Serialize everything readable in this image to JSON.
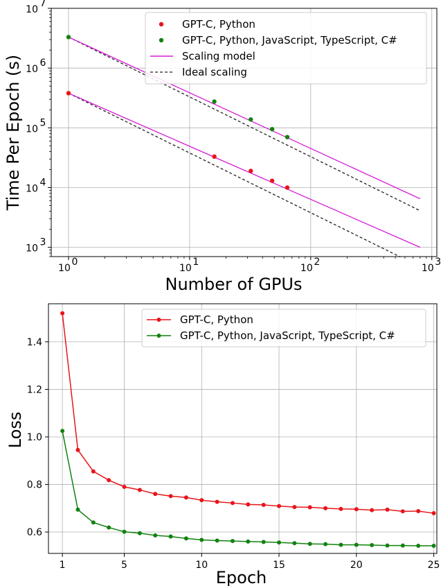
{
  "chart_data": [
    {
      "type": "scatter",
      "scale": "log-log",
      "xlabel": "Number of GPUs",
      "ylabel": "Time Per Epoch (s)",
      "xlim": [
        0.72,
        1100
      ],
      "ylim": [
        700,
        10000000
      ],
      "xticks": [
        1,
        10,
        100,
        1000
      ],
      "xtick_labels": [
        "10",
        "10",
        "10",
        "10"
      ],
      "xtick_exps": [
        "0",
        "1",
        "2",
        "3"
      ],
      "yticks": [
        1000,
        10000,
        100000,
        1000000,
        10000000
      ],
      "ytick_labels": [
        "10",
        "10",
        "10",
        "10",
        "10"
      ],
      "ytick_exps": [
        "3",
        "4",
        "5",
        "6",
        "7"
      ],
      "grid": true,
      "legend_position": "top-right",
      "legend": [
        {
          "label": "GPT-C, Python",
          "kind": "marker",
          "color": "#e8141a"
        },
        {
          "label": "GPT-C, Python, JavaScript, TypeScript, C#",
          "kind": "marker",
          "color": "#12820f"
        },
        {
          "label": "Scaling model",
          "kind": "line",
          "color": "#d61bd6"
        },
        {
          "label": "Ideal scaling",
          "kind": "dashed",
          "color": "#222222"
        }
      ],
      "series": [
        {
          "name": "GPT-C, Python",
          "color": "#e8141a",
          "points": [
            [
              1,
              380000
            ],
            [
              16,
              33000
            ],
            [
              32,
              19000
            ],
            [
              48,
              13000
            ],
            [
              64,
              10000
            ]
          ]
        },
        {
          "name": "GPT-C, Python, JavaScript, TypeScript, C#",
          "color": "#12820f",
          "points": [
            [
              1,
              3300000
            ],
            [
              16,
              275000
            ],
            [
              32,
              138000
            ],
            [
              48,
              95000
            ],
            [
              64,
              70000
            ]
          ]
        }
      ],
      "scaling_model": [
        {
          "color": "#d61bd6",
          "points": [
            [
              1,
              380000
            ],
            [
              800,
              1000
            ]
          ]
        },
        {
          "color": "#d61bd6",
          "points": [
            [
              1,
              3300000
            ],
            [
              800,
              6500
            ]
          ]
        }
      ],
      "ideal_scaling": [
        {
          "color": "#222222",
          "points": [
            [
              1,
              380000
            ],
            [
              550,
              690
            ]
          ]
        },
        {
          "color": "#222222",
          "points": [
            [
              1,
              3300000
            ],
            [
              800,
              4100
            ]
          ]
        }
      ]
    },
    {
      "type": "line",
      "xlabel": "Epoch",
      "ylabel": "Loss",
      "xlim": [
        0.1,
        25.2
      ],
      "ylim": [
        0.51,
        1.56
      ],
      "xticks": [
        1,
        5,
        10,
        15,
        20,
        25
      ],
      "yticks": [
        0.6,
        0.8,
        1.0,
        1.2,
        1.4
      ],
      "ytick_labels": [
        "0.6",
        "0.8",
        "1.0",
        "1.2",
        "1.4"
      ],
      "grid": true,
      "legend_position": "top-right",
      "series": [
        {
          "name": "GPT-C, Python",
          "color": "#e8141a",
          "x": [
            1,
            2,
            3,
            4,
            5,
            6,
            7,
            8,
            9,
            10,
            11,
            12,
            13,
            14,
            15,
            16,
            17,
            18,
            19,
            20,
            21,
            22,
            23,
            24,
            25
          ],
          "y": [
            1.52,
            0.945,
            0.855,
            0.818,
            0.79,
            0.777,
            0.76,
            0.751,
            0.745,
            0.734,
            0.727,
            0.722,
            0.716,
            0.714,
            0.709,
            0.705,
            0.704,
            0.7,
            0.697,
            0.696,
            0.692,
            0.694,
            0.687,
            0.688,
            0.679
          ]
        },
        {
          "name": "GPT-C, Python, JavaScript, TypeScript, C#",
          "color": "#12820f",
          "x": [
            1,
            2,
            3,
            4,
            5,
            6,
            7,
            8,
            9,
            10,
            11,
            12,
            13,
            14,
            15,
            16,
            17,
            18,
            19,
            20,
            21,
            22,
            23,
            24,
            25
          ],
          "y": [
            1.025,
            0.694,
            0.64,
            0.619,
            0.601,
            0.595,
            0.586,
            0.581,
            0.573,
            0.567,
            0.564,
            0.562,
            0.56,
            0.558,
            0.556,
            0.553,
            0.55,
            0.549,
            0.546,
            0.546,
            0.545,
            0.543,
            0.543,
            0.542,
            0.542
          ]
        }
      ]
    }
  ]
}
